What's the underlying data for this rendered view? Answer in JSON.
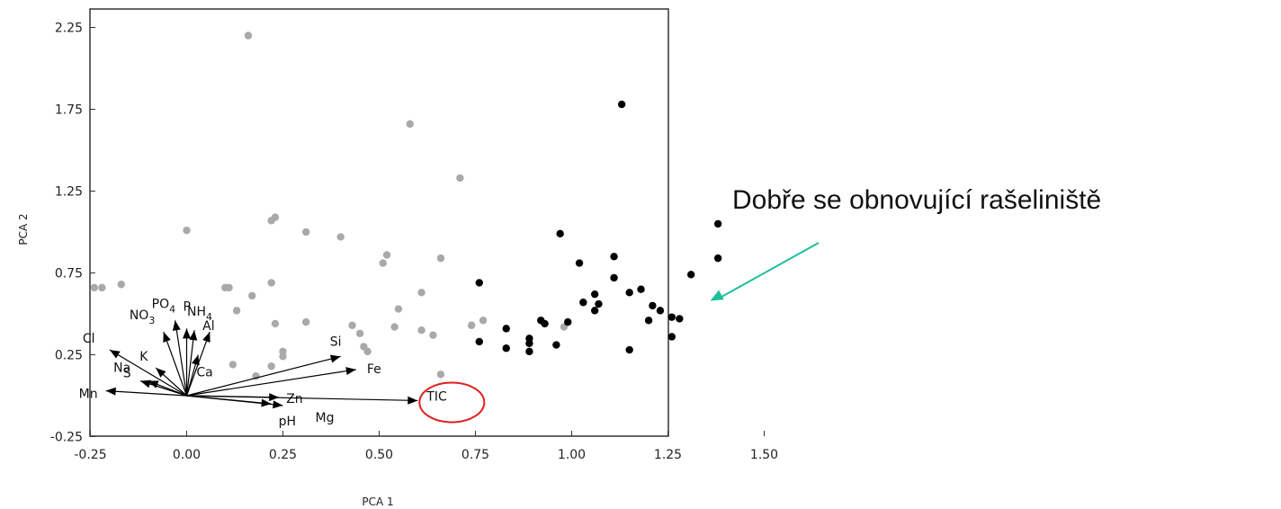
{
  "chart_data": {
    "type": "scatter",
    "title": "",
    "xlabel": "PCA 1",
    "ylabel": "PCA 2",
    "xlim": [
      -0.3,
      1.5
    ],
    "ylim": [
      -0.25,
      2.3
    ],
    "x_ticks": [
      "-0.25",
      "0.00",
      "0.25",
      "0.50",
      "0.75",
      "1.00",
      "1.25",
      "1.50"
    ],
    "x_tick_values": [
      -0.25,
      0,
      0.25,
      0.5,
      0.75,
      1.0,
      1.25,
      1.5
    ],
    "y_ticks": [
      "2.25",
      "1.75",
      "1.25",
      "0.75",
      "0.25",
      "-0.25"
    ],
    "y_tick_values": [
      2.25,
      1.75,
      1.25,
      0.75,
      0.25,
      -0.25
    ],
    "grid": false,
    "series": [
      {
        "color": "#a9a9a9",
        "points": [
          [
            -0.24,
            0.66
          ],
          [
            -0.22,
            0.66
          ],
          [
            -0.17,
            0.68
          ],
          [
            0.0,
            1.01
          ],
          [
            0.1,
            0.66
          ],
          [
            0.11,
            0.66
          ],
          [
            0.12,
            0.19
          ],
          [
            0.13,
            0.52
          ],
          [
            0.16,
            2.2
          ],
          [
            0.17,
            0.61
          ],
          [
            0.18,
            0.12
          ],
          [
            0.22,
            0.69
          ],
          [
            0.22,
            1.07
          ],
          [
            0.23,
            1.09
          ],
          [
            0.23,
            0.44
          ],
          [
            0.22,
            0.18
          ],
          [
            0.25,
            0.27
          ],
          [
            0.25,
            0.24
          ],
          [
            0.31,
            0.45
          ],
          [
            0.31,
            1.0
          ],
          [
            0.4,
            0.97
          ],
          [
            0.43,
            0.43
          ],
          [
            0.45,
            0.38
          ],
          [
            0.46,
            0.3
          ],
          [
            0.47,
            0.27
          ],
          [
            0.51,
            0.81
          ],
          [
            0.52,
            0.86
          ],
          [
            0.54,
            0.42
          ],
          [
            0.55,
            0.53
          ],
          [
            0.58,
            1.66
          ],
          [
            0.61,
            0.4
          ],
          [
            0.61,
            0.63
          ],
          [
            0.64,
            0.37
          ],
          [
            0.66,
            0.84
          ],
          [
            0.66,
            0.13
          ],
          [
            0.71,
            1.33
          ],
          [
            0.74,
            0.43
          ],
          [
            0.77,
            0.46
          ],
          [
            0.98,
            0.42
          ]
        ]
      },
      {
        "color": "#000000",
        "points": [
          [
            0.76,
            0.69
          ],
          [
            0.76,
            0.33
          ],
          [
            0.83,
            0.41
          ],
          [
            0.83,
            0.29
          ],
          [
            0.89,
            0.35
          ],
          [
            0.89,
            0.32
          ],
          [
            0.89,
            0.27
          ],
          [
            0.92,
            0.46
          ],
          [
            0.93,
            0.44
          ],
          [
            0.96,
            0.31
          ],
          [
            0.97,
            0.99
          ],
          [
            0.99,
            0.45
          ],
          [
            1.02,
            0.81
          ],
          [
            1.03,
            0.57
          ],
          [
            1.06,
            0.62
          ],
          [
            1.06,
            0.52
          ],
          [
            1.07,
            0.56
          ],
          [
            1.11,
            0.85
          ],
          [
            1.11,
            0.72
          ],
          [
            1.13,
            1.78
          ],
          [
            1.15,
            0.63
          ],
          [
            1.15,
            0.28
          ],
          [
            1.18,
            0.65
          ],
          [
            1.2,
            0.46
          ],
          [
            1.21,
            0.55
          ],
          [
            1.23,
            0.52
          ],
          [
            1.26,
            0.48
          ],
          [
            1.26,
            0.36
          ],
          [
            1.28,
            0.47
          ],
          [
            1.31,
            0.74
          ],
          [
            1.38,
            1.05
          ],
          [
            1.38,
            0.84
          ]
        ]
      }
    ],
    "vectors": [
      {
        "label": "Mn",
        "x": -0.21,
        "y": 0.03
      },
      {
        "label": "Na",
        "x": -0.12,
        "y": 0.09
      },
      {
        "label": "S",
        "x": -0.1,
        "y": 0.09
      },
      {
        "label": "Cl",
        "x": -0.2,
        "y": 0.28
      },
      {
        "label": "K",
        "x": -0.08,
        "y": 0.17
      },
      {
        "label": "NO3",
        "x": -0.06,
        "y": 0.39
      },
      {
        "label": "PO4",
        "x": -0.03,
        "y": 0.46
      },
      {
        "label": "P",
        "x": 0.0,
        "y": 0.41
      },
      {
        "label": "NH4",
        "x": 0.02,
        "y": 0.4
      },
      {
        "label": "Al",
        "x": 0.06,
        "y": 0.39
      },
      {
        "label": "Ca",
        "x": 0.03,
        "y": 0.25
      },
      {
        "label": "Si",
        "x": 0.4,
        "y": 0.24
      },
      {
        "label": "Fe",
        "x": 0.44,
        "y": 0.16
      },
      {
        "label": "Zn",
        "x": 0.24,
        "y": -0.01
      },
      {
        "label": "Mg",
        "x": 0.25,
        "y": -0.06
      },
      {
        "label": "pH",
        "x": 0.22,
        "y": -0.05
      },
      {
        "label": "TIC",
        "x": 0.6,
        "y": -0.03
      }
    ],
    "highlight": {
      "label": "TIC",
      "color": "#e02020"
    },
    "annotation": {
      "text": "Dobře se obnovující rašeliniště",
      "arrow_color": "#1dbf9a",
      "points_to": [
        1.36,
        0.58
      ]
    }
  }
}
